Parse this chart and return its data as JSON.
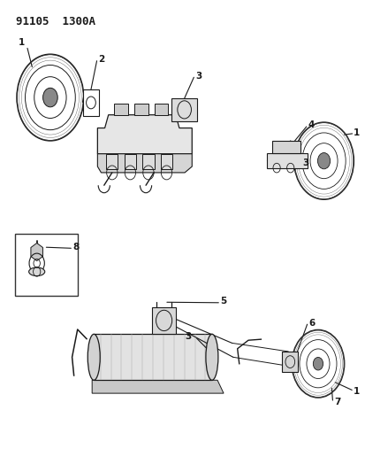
{
  "title_line1": "91105",
  "title_line2": "1300A",
  "bg_color": "#ffffff",
  "fig_width": 4.14,
  "fig_height": 5.33,
  "dpi": 100,
  "line_color": "#1a1a1a",
  "text_color": "#1a1a1a"
}
